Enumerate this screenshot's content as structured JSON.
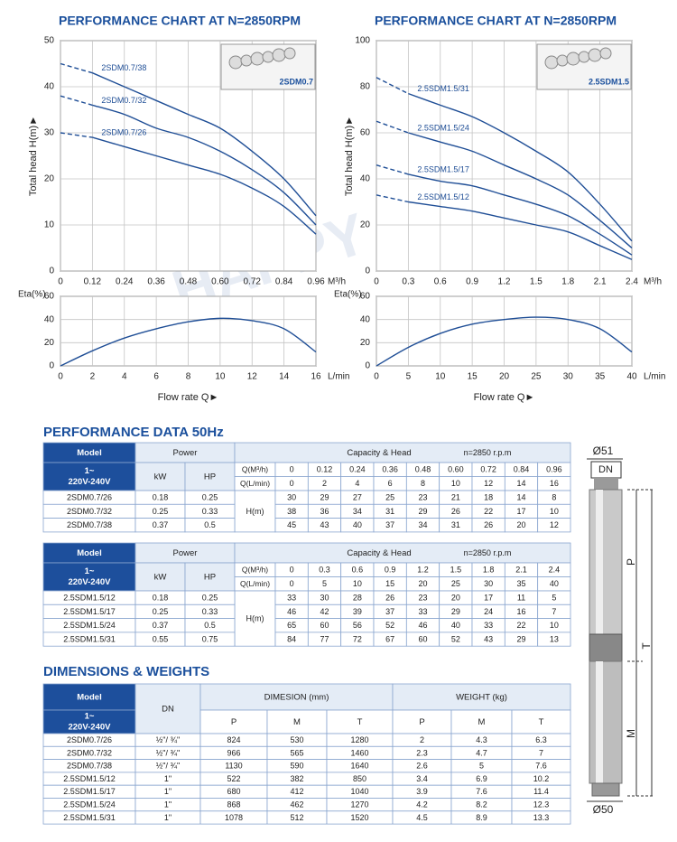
{
  "chart_data": [
    {
      "type": "line",
      "title": "PERFORMANCE CHART AT N=2850RPM",
      "y_label": "Total head H(m)►",
      "x_unit": "M³/h",
      "inset_label": "2SDM0.7",
      "x": [
        0,
        0.12,
        0.24,
        0.36,
        0.48,
        0.6,
        0.72,
        0.84,
        0.96
      ],
      "xlim": [
        0,
        0.96
      ],
      "xticks": [
        0,
        0.12,
        0.24,
        0.36,
        0.48,
        {
          "value": 0.6,
          "label": "0.60"
        },
        0.72,
        0.84,
        0.96
      ],
      "ylim": [
        0,
        50
      ],
      "yticks": [
        0,
        10,
        20,
        30,
        40,
        50
      ],
      "grid": true,
      "series": [
        {
          "name": "2SDM0.7/38",
          "color": "#1f4e96",
          "values": [
            45,
            43,
            40,
            37,
            34,
            31,
            26,
            20,
            12
          ]
        },
        {
          "name": "2SDM0.7/32",
          "color": "#1f4e96",
          "values": [
            38,
            36,
            34,
            31,
            29,
            26,
            22,
            17,
            10
          ]
        },
        {
          "name": "2SDM0.7/26",
          "color": "#1f4e96",
          "values": [
            30,
            29,
            27,
            25,
            23,
            21,
            18,
            14,
            8
          ]
        }
      ]
    },
    {
      "type": "line",
      "title": "PERFORMANCE CHART AT N=2850RPM",
      "y_label": "Total head H(m)►",
      "x_unit": "M³/h",
      "inset_label": "2.5SDM1.5",
      "x": [
        0,
        0.3,
        0.6,
        0.9,
        1.2,
        1.5,
        1.8,
        2.1,
        2.4
      ],
      "xlim": [
        0,
        2.4
      ],
      "xticks": [
        0,
        0.3,
        0.6,
        0.9,
        1.2,
        1.5,
        1.8,
        2.1,
        2.4
      ],
      "ylim": [
        0,
        100
      ],
      "yticks": [
        0,
        20,
        40,
        60,
        80,
        100
      ],
      "grid": true,
      "series": [
        {
          "name": "2.5SDM1.5/31",
          "color": "#1f4e96",
          "values": [
            84,
            77,
            72,
            67,
            60,
            52,
            43,
            29,
            13
          ]
        },
        {
          "name": "2.5SDM1.5/24",
          "color": "#1f4e96",
          "values": [
            65,
            60,
            56,
            52,
            46,
            40,
            33,
            22,
            10
          ]
        },
        {
          "name": "2.5SDM1.5/17",
          "color": "#1f4e96",
          "values": [
            46,
            42,
            39,
            37,
            33,
            29,
            24,
            16,
            7
          ]
        },
        {
          "name": "2.5SDM1.5/12",
          "color": "#1f4e96",
          "values": [
            33,
            30,
            28,
            26,
            23,
            20,
            17,
            11,
            5
          ]
        }
      ]
    },
    {
      "type": "line",
      "y_label": "Eta(%)",
      "x_label": "Flow rate Q►",
      "x_unit": "L/min",
      "x": [
        0,
        2,
        4,
        6,
        8,
        10,
        12,
        14,
        16
      ],
      "xlim": [
        0,
        16
      ],
      "xticks": [
        0,
        2,
        4,
        6,
        8,
        10,
        12,
        14,
        16
      ],
      "ylim": [
        0,
        60
      ],
      "yticks": [
        0,
        20,
        40,
        60
      ],
      "grid": true,
      "series": [
        {
          "color": "#1f4e96",
          "values": [
            0,
            13,
            24,
            32,
            38,
            41,
            39,
            32,
            12
          ]
        }
      ]
    },
    {
      "type": "line",
      "y_label": "Eta(%)",
      "x_label": "Flow rate Q►",
      "x_unit": "L/min",
      "x": [
        0,
        5,
        10,
        15,
        20,
        25,
        30,
        35,
        40
      ],
      "xlim": [
        0,
        40
      ],
      "xticks": [
        0,
        5,
        10,
        15,
        20,
        25,
        30,
        35,
        40
      ],
      "ylim": [
        0,
        60
      ],
      "yticks": [
        0,
        20,
        40,
        60
      ],
      "grid": true,
      "series": [
        {
          "color": "#1f4e96",
          "values": [
            0,
            16,
            28,
            36,
            40,
            42,
            40,
            32,
            12
          ]
        }
      ]
    }
  ],
  "watermark": "HAPPY",
  "performance_data": {
    "title": "PERFORMANCE DATA 50Hz",
    "tables": [
      {
        "model_header": "Model",
        "voltage": [
          "1~",
          "220V-240V"
        ],
        "power_header": "Power",
        "kw_header": "kW",
        "hp_header": "HP",
        "capacity_header": "Capacity & Head",
        "speed": "n=2850 r.p.m",
        "q_m3h_label": "Q(M³/h)",
        "q_lmin_label": "Q(L/min)",
        "head_label": "H(m)",
        "q_m3h": [
          "0",
          "0.12",
          "0.24",
          "0.36",
          "0.48",
          "0.60",
          "0.72",
          "0.84",
          "0.96"
        ],
        "q_lmin": [
          "0",
          "2",
          "4",
          "6",
          "8",
          "10",
          "12",
          "14",
          "16"
        ],
        "rows": [
          {
            "model": "2SDM0.7/26",
            "kw": "0.18",
            "hp": "0.25",
            "head": [
              "30",
              "29",
              "27",
              "25",
              "23",
              "21",
              "18",
              "14",
              "8"
            ]
          },
          {
            "model": "2SDM0.7/32",
            "kw": "0.25",
            "hp": "0.33",
            "head": [
              "38",
              "36",
              "34",
              "31",
              "29",
              "26",
              "22",
              "17",
              "10"
            ]
          },
          {
            "model": "2SDM0.7/38",
            "kw": "0.37",
            "hp": "0.5",
            "head": [
              "45",
              "43",
              "40",
              "37",
              "34",
              "31",
              "26",
              "20",
              "12"
            ]
          }
        ]
      },
      {
        "model_header": "Model",
        "voltage": [
          "1~",
          "220V-240V"
        ],
        "power_header": "Power",
        "kw_header": "kW",
        "hp_header": "HP",
        "capacity_header": "Capacity & Head",
        "speed": "n=2850 r.p.m",
        "q_m3h_label": "Q(M³/h)",
        "q_lmin_label": "Q(L/min)",
        "head_label": "H(m)",
        "q_m3h": [
          "0",
          "0.3",
          "0.6",
          "0.9",
          "1.2",
          "1.5",
          "1.8",
          "2.1",
          "2.4"
        ],
        "q_lmin": [
          "0",
          "5",
          "10",
          "15",
          "20",
          "25",
          "30",
          "35",
          "40"
        ],
        "rows": [
          {
            "model": "2.5SDM1.5/12",
            "kw": "0.18",
            "hp": "0.25",
            "head": [
              "33",
              "30",
              "28",
              "26",
              "23",
              "20",
              "17",
              "11",
              "5"
            ]
          },
          {
            "model": "2.5SDM1.5/17",
            "kw": "0.25",
            "hp": "0.33",
            "head": [
              "46",
              "42",
              "39",
              "37",
              "33",
              "29",
              "24",
              "16",
              "7"
            ]
          },
          {
            "model": "2.5SDM1.5/24",
            "kw": "0.37",
            "hp": "0.5",
            "head": [
              "65",
              "60",
              "56",
              "52",
              "46",
              "40",
              "33",
              "22",
              "10"
            ]
          },
          {
            "model": "2.5SDM1.5/31",
            "kw": "0.55",
            "hp": "0.75",
            "head": [
              "84",
              "77",
              "72",
              "67",
              "60",
              "52",
              "43",
              "29",
              "13"
            ]
          }
        ]
      }
    ]
  },
  "dimensions": {
    "title": "DIMENSIONS & WEIGHTS",
    "model_header": "Model",
    "voltage": [
      "1~",
      "220V-240V"
    ],
    "dn_header": "DN",
    "dimension_header": "DIMESION (mm)",
    "weight_header": "WEIGHT (kg)",
    "dimension_cols": [
      "P",
      "M",
      "T"
    ],
    "weight_cols": [
      "P",
      "M",
      "T"
    ],
    "rows": [
      {
        "model": "2SDM0.7/26",
        "dn": "½\"/ ¾\"",
        "dimension": [
          "824",
          "530",
          "1280"
        ],
        "weight": [
          "2",
          "4.3",
          "6.3"
        ]
      },
      {
        "model": "2SDM0.7/32",
        "dn": "½\"/ ¾\"",
        "dimension": [
          "966",
          "565",
          "1460"
        ],
        "weight": [
          "2.3",
          "4.7",
          "7"
        ]
      },
      {
        "model": "2SDM0.7/38",
        "dn": "½\"/ ¾\"",
        "dimension": [
          "1130",
          "590",
          "1640"
        ],
        "weight": [
          "2.6",
          "5",
          "7.6"
        ]
      },
      {
        "model": "2.5SDM1.5/12",
        "dn": "1\"",
        "dimension": [
          "522",
          "382",
          "850"
        ],
        "weight": [
          "3.4",
          "6.9",
          "10.2"
        ]
      },
      {
        "model": "2.5SDM1.5/17",
        "dn": "1\"",
        "dimension": [
          "680",
          "412",
          "1040"
        ],
        "weight": [
          "3.9",
          "7.6",
          "11.4"
        ]
      },
      {
        "model": "2.5SDM1.5/24",
        "dn": "1\"",
        "dimension": [
          "868",
          "462",
          "1270"
        ],
        "weight": [
          "4.2",
          "8.2",
          "12.3"
        ]
      },
      {
        "model": "2.5SDM1.5/31",
        "dn": "1\"",
        "dimension": [
          "1078",
          "512",
          "1520"
        ],
        "weight": [
          "4.5",
          "8.9",
          "13.3"
        ]
      }
    ]
  },
  "pump_drawing": {
    "top_diameter": "Ø51",
    "dn": "DN",
    "p": "P",
    "t": "T",
    "m": "M",
    "bottom_diameter": "Ø50"
  }
}
